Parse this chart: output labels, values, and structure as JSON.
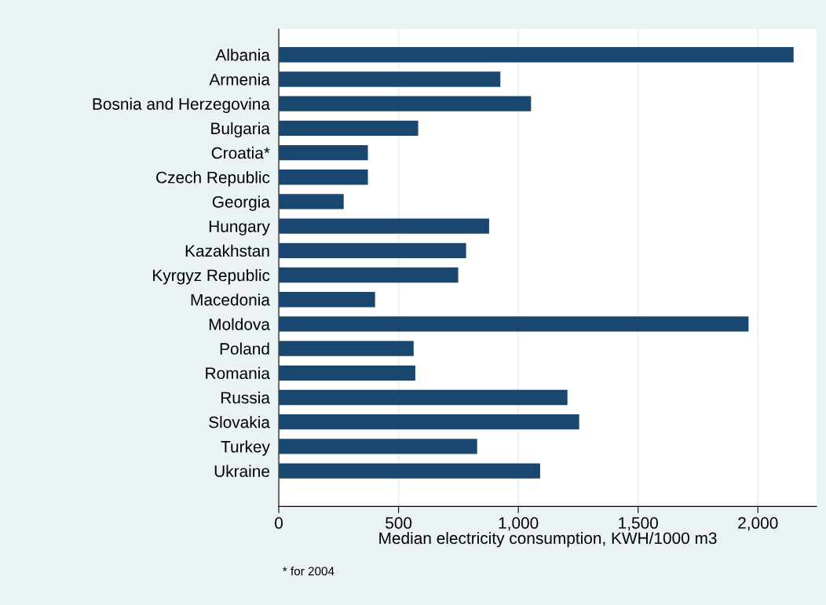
{
  "chart_data": {
    "type": "bar",
    "orientation": "horizontal",
    "categories": [
      "Albania",
      "Armenia",
      "Bosnia and Herzegovina",
      "Bulgaria",
      "Croatia*",
      "Czech Republic",
      "Georgia",
      "Hungary",
      "Kazakhstan",
      "Kyrgyz Republic",
      "Macedonia",
      "Moldova",
      "Poland",
      "Romania",
      "Russia",
      "Slovakia",
      "Turkey",
      "Ukraine"
    ],
    "values": [
      2149,
      925,
      1053,
      582,
      372,
      372,
      271,
      878,
      782,
      749,
      402,
      1961,
      563,
      570,
      1205,
      1254,
      828,
      1091
    ],
    "color": "#1a476f",
    "xlabel": "Median electricity consumption, KWH/1000 m3",
    "xlim": [
      0,
      2245
    ],
    "xticks": [
      0,
      {
        "value": 500,
        "label": "500"
      },
      {
        "value": 1000,
        "label": "1,000"
      },
      {
        "value": 1500,
        "label": "1,500"
      },
      {
        "value": 2000,
        "label": "2,000"
      }
    ],
    "grid": "x",
    "annotations": [
      "* for 2004"
    ]
  }
}
